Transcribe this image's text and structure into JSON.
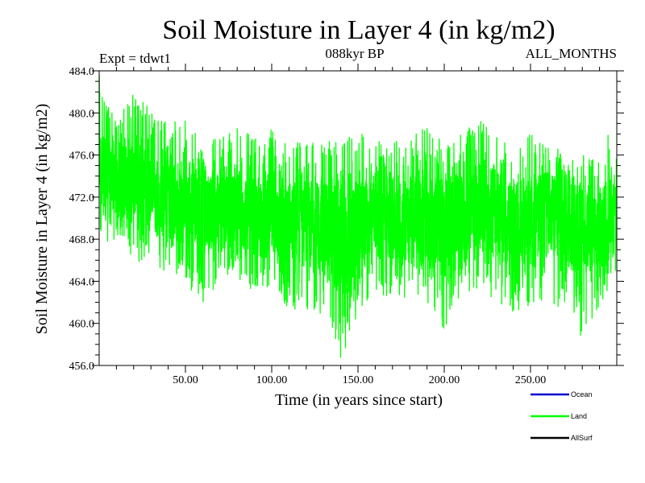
{
  "chart_data": {
    "type": "line",
    "title": "Soil Moisture in Layer 4 (in kg/m2)",
    "subtitle_left": "Expt = tdwt1",
    "subtitle_center": "088kyr BP",
    "subtitle_right": "ALL_MONTHS",
    "xlabel": "Time (in years since start)",
    "ylabel": "Soil Moisture in Layer 4 (in kg/m2)",
    "xlim": [
      0,
      300
    ],
    "ylim": [
      456.0,
      484.0
    ],
    "x_ticks": [
      50,
      100,
      150,
      200,
      250
    ],
    "x_tick_labels": [
      "50.00",
      "100.00",
      "150.00",
      "200.00",
      "250.00"
    ],
    "y_ticks": [
      456,
      460,
      464,
      468,
      472,
      476,
      480,
      484
    ],
    "y_tick_labels": [
      "456.0",
      "460.0",
      "464.0",
      "468.0",
      "472.0",
      "476.0",
      "480.0",
      "484.0"
    ],
    "series": [
      {
        "name": "Ocean",
        "color": "#0000cc",
        "x": [],
        "values": []
      },
      {
        "name": "Land",
        "color": "#00ff00",
        "x": [
          0,
          10,
          20,
          30,
          40,
          50,
          60,
          70,
          80,
          90,
          100,
          110,
          120,
          130,
          140,
          150,
          160,
          170,
          180,
          190,
          200,
          210,
          220,
          230,
          240,
          250,
          260,
          270,
          280,
          290,
          300
        ],
        "values": [
          474.5,
          473.0,
          474.0,
          472.5,
          471.5,
          471.5,
          471.0,
          470.5,
          471.0,
          470.0,
          470.5,
          469.0,
          469.5,
          469.0,
          468.0,
          468.5,
          470.5,
          470.0,
          470.0,
          470.5,
          469.0,
          469.5,
          471.5,
          470.5,
          469.0,
          469.5,
          470.5,
          470.0,
          468.5,
          469.0,
          470.5
        ],
        "min_envelope": [
          468.0,
          467.5,
          466.0,
          465.5,
          464.5,
          464.0,
          461.0,
          464.5,
          464.0,
          463.0,
          463.5,
          461.0,
          460.5,
          461.0,
          456.3,
          461.0,
          462.5,
          462.0,
          462.5,
          462.0,
          459.0,
          461.5,
          463.0,
          462.0,
          461.0,
          461.5,
          462.5,
          460.5,
          458.3,
          461.5,
          465.0
        ],
        "max_envelope": [
          483.7,
          479.0,
          482.5,
          480.5,
          479.5,
          479.5,
          477.5,
          478.0,
          479.0,
          477.5,
          478.5,
          478.0,
          477.0,
          478.0,
          477.0,
          478.5,
          477.5,
          477.0,
          478.5,
          479.0,
          477.0,
          478.0,
          479.5,
          478.0,
          476.5,
          478.5,
          477.0,
          477.0,
          476.0,
          477.0,
          479.5
        ]
      },
      {
        "name": "AllSurf",
        "color": "#000000",
        "x": [],
        "values": []
      }
    ],
    "legend_position": "bottom-right"
  }
}
